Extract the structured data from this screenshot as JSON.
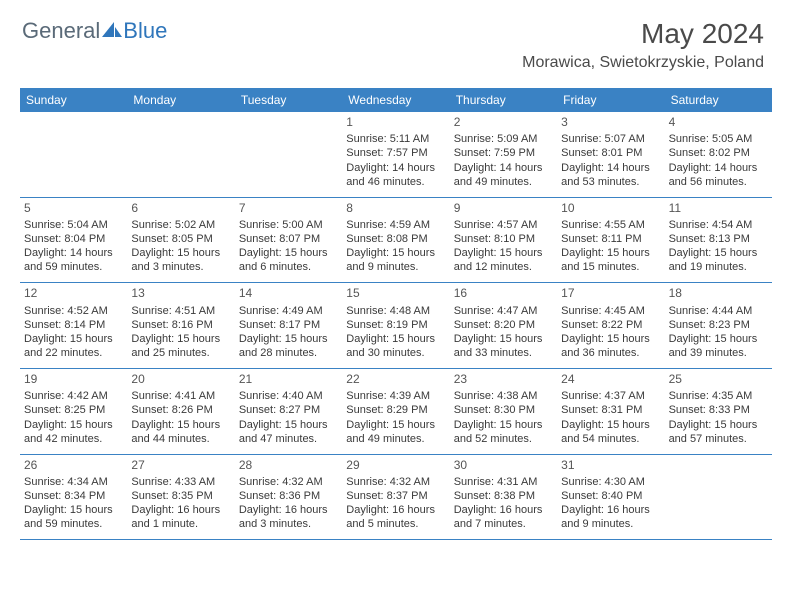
{
  "brand": {
    "part1": "General",
    "part2": "Blue"
  },
  "title": "May 2024",
  "location": "Morawica, Swietokrzyskie, Poland",
  "colors": {
    "header_bg": "#3a82c4",
    "header_text": "#ffffff",
    "brand_gray": "#5a6a78",
    "brand_blue": "#2f76bb",
    "text": "#3a3a3a",
    "rule": "#3a82c4"
  },
  "day_names": [
    "Sunday",
    "Monday",
    "Tuesday",
    "Wednesday",
    "Thursday",
    "Friday",
    "Saturday"
  ],
  "layout": {
    "columns": 7,
    "rows": 5,
    "first_weekday_index": 3
  },
  "days": [
    {
      "n": 1,
      "sunrise": "5:11 AM",
      "sunset": "7:57 PM",
      "daylight": "14 hours and 46 minutes."
    },
    {
      "n": 2,
      "sunrise": "5:09 AM",
      "sunset": "7:59 PM",
      "daylight": "14 hours and 49 minutes."
    },
    {
      "n": 3,
      "sunrise": "5:07 AM",
      "sunset": "8:01 PM",
      "daylight": "14 hours and 53 minutes."
    },
    {
      "n": 4,
      "sunrise": "5:05 AM",
      "sunset": "8:02 PM",
      "daylight": "14 hours and 56 minutes."
    },
    {
      "n": 5,
      "sunrise": "5:04 AM",
      "sunset": "8:04 PM",
      "daylight": "14 hours and 59 minutes."
    },
    {
      "n": 6,
      "sunrise": "5:02 AM",
      "sunset": "8:05 PM",
      "daylight": "15 hours and 3 minutes."
    },
    {
      "n": 7,
      "sunrise": "5:00 AM",
      "sunset": "8:07 PM",
      "daylight": "15 hours and 6 minutes."
    },
    {
      "n": 8,
      "sunrise": "4:59 AM",
      "sunset": "8:08 PM",
      "daylight": "15 hours and 9 minutes."
    },
    {
      "n": 9,
      "sunrise": "4:57 AM",
      "sunset": "8:10 PM",
      "daylight": "15 hours and 12 minutes."
    },
    {
      "n": 10,
      "sunrise": "4:55 AM",
      "sunset": "8:11 PM",
      "daylight": "15 hours and 15 minutes."
    },
    {
      "n": 11,
      "sunrise": "4:54 AM",
      "sunset": "8:13 PM",
      "daylight": "15 hours and 19 minutes."
    },
    {
      "n": 12,
      "sunrise": "4:52 AM",
      "sunset": "8:14 PM",
      "daylight": "15 hours and 22 minutes."
    },
    {
      "n": 13,
      "sunrise": "4:51 AM",
      "sunset": "8:16 PM",
      "daylight": "15 hours and 25 minutes."
    },
    {
      "n": 14,
      "sunrise": "4:49 AM",
      "sunset": "8:17 PM",
      "daylight": "15 hours and 28 minutes."
    },
    {
      "n": 15,
      "sunrise": "4:48 AM",
      "sunset": "8:19 PM",
      "daylight": "15 hours and 30 minutes."
    },
    {
      "n": 16,
      "sunrise": "4:47 AM",
      "sunset": "8:20 PM",
      "daylight": "15 hours and 33 minutes."
    },
    {
      "n": 17,
      "sunrise": "4:45 AM",
      "sunset": "8:22 PM",
      "daylight": "15 hours and 36 minutes."
    },
    {
      "n": 18,
      "sunrise": "4:44 AM",
      "sunset": "8:23 PM",
      "daylight": "15 hours and 39 minutes."
    },
    {
      "n": 19,
      "sunrise": "4:42 AM",
      "sunset": "8:25 PM",
      "daylight": "15 hours and 42 minutes."
    },
    {
      "n": 20,
      "sunrise": "4:41 AM",
      "sunset": "8:26 PM",
      "daylight": "15 hours and 44 minutes."
    },
    {
      "n": 21,
      "sunrise": "4:40 AM",
      "sunset": "8:27 PM",
      "daylight": "15 hours and 47 minutes."
    },
    {
      "n": 22,
      "sunrise": "4:39 AM",
      "sunset": "8:29 PM",
      "daylight": "15 hours and 49 minutes."
    },
    {
      "n": 23,
      "sunrise": "4:38 AM",
      "sunset": "8:30 PM",
      "daylight": "15 hours and 52 minutes."
    },
    {
      "n": 24,
      "sunrise": "4:37 AM",
      "sunset": "8:31 PM",
      "daylight": "15 hours and 54 minutes."
    },
    {
      "n": 25,
      "sunrise": "4:35 AM",
      "sunset": "8:33 PM",
      "daylight": "15 hours and 57 minutes."
    },
    {
      "n": 26,
      "sunrise": "4:34 AM",
      "sunset": "8:34 PM",
      "daylight": "15 hours and 59 minutes."
    },
    {
      "n": 27,
      "sunrise": "4:33 AM",
      "sunset": "8:35 PM",
      "daylight": "16 hours and 1 minute."
    },
    {
      "n": 28,
      "sunrise": "4:32 AM",
      "sunset": "8:36 PM",
      "daylight": "16 hours and 3 minutes."
    },
    {
      "n": 29,
      "sunrise": "4:32 AM",
      "sunset": "8:37 PM",
      "daylight": "16 hours and 5 minutes."
    },
    {
      "n": 30,
      "sunrise": "4:31 AM",
      "sunset": "8:38 PM",
      "daylight": "16 hours and 7 minutes."
    },
    {
      "n": 31,
      "sunrise": "4:30 AM",
      "sunset": "8:40 PM",
      "daylight": "16 hours and 9 minutes."
    }
  ],
  "labels": {
    "sunrise": "Sunrise:",
    "sunset": "Sunset:",
    "daylight": "Daylight:"
  }
}
